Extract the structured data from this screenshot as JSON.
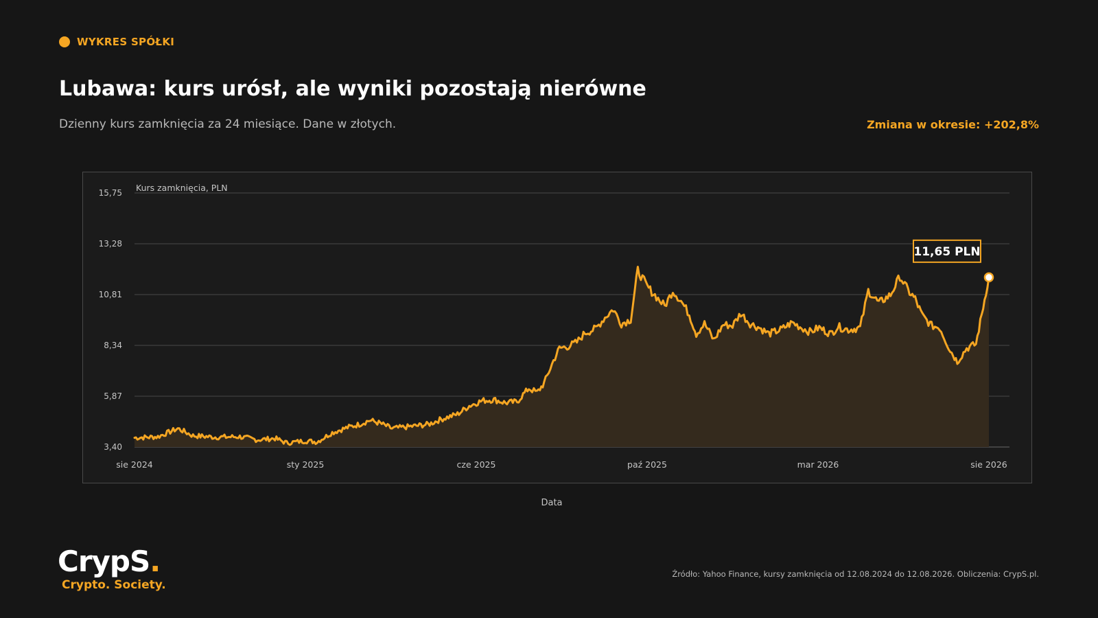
{
  "header": {
    "kicker": "WYKRES SPÓŁKI",
    "title": "Lubawa: kurs urósł, ale wyniki pozostają nierówne",
    "subtitle": "Dzienny kurs zamknięcia za 24 miesiące. Dane w złotych.",
    "change": "Zmiana w okresie: +202,8%"
  },
  "colors": {
    "accent": "#f5a623",
    "background": "#161616",
    "panel": "#1b1b1b",
    "area_fill": "#342a1d"
  },
  "chart_data": {
    "type": "area",
    "ylabel": "Kurs zamknięcia, PLN",
    "xlabel": "Data",
    "ylim": [
      3.4,
      15.75
    ],
    "yticks": [
      "15,75",
      "13,28",
      "10,81",
      "8,34",
      "5,87",
      "3,40"
    ],
    "xticks": [
      "sie 2024",
      "sty 2025",
      "cze 2025",
      "paź 2025",
      "mar 2026",
      "sie 2026"
    ],
    "grid": true,
    "x_start": "2024-08-12",
    "x_end": "2026-08-12",
    "points": [
      [
        "2024-08-12",
        3.85
      ],
      [
        "2024-09-01",
        3.9
      ],
      [
        "2024-09-18",
        4.3
      ],
      [
        "2024-10-01",
        3.95
      ],
      [
        "2024-10-20",
        3.88
      ],
      [
        "2024-11-10",
        3.9
      ],
      [
        "2024-11-25",
        3.75
      ],
      [
        "2024-12-10",
        3.82
      ],
      [
        "2024-12-20",
        3.6
      ],
      [
        "2025-01-05",
        3.7
      ],
      [
        "2025-01-15",
        3.65
      ],
      [
        "2025-01-28",
        4.1
      ],
      [
        "2025-02-10",
        4.35
      ],
      [
        "2025-02-20",
        4.5
      ],
      [
        "2025-03-01",
        4.7
      ],
      [
        "2025-03-10",
        4.55
      ],
      [
        "2025-03-20",
        4.3
      ],
      [
        "2025-04-05",
        4.4
      ],
      [
        "2025-04-20",
        4.5
      ],
      [
        "2025-05-01",
        4.75
      ],
      [
        "2025-05-15",
        5.0
      ],
      [
        "2025-05-25",
        5.4
      ],
      [
        "2025-06-05",
        5.65
      ],
      [
        "2025-06-15",
        5.7
      ],
      [
        "2025-06-25",
        5.55
      ],
      [
        "2025-07-05",
        5.6
      ],
      [
        "2025-07-10",
        5.95
      ],
      [
        "2025-07-15",
        6.25
      ],
      [
        "2025-07-22",
        6.05
      ],
      [
        "2025-07-28",
        6.5
      ],
      [
        "2025-08-05",
        7.6
      ],
      [
        "2025-08-10",
        8.2
      ],
      [
        "2025-08-18",
        8.3
      ],
      [
        "2025-08-25",
        8.5
      ],
      [
        "2025-09-01",
        8.95
      ],
      [
        "2025-09-10",
        9.15
      ],
      [
        "2025-09-18",
        9.7
      ],
      [
        "2025-09-25",
        10.1
      ],
      [
        "2025-10-02",
        9.4
      ],
      [
        "2025-10-10",
        9.6
      ],
      [
        "2025-10-16",
        12.0
      ],
      [
        "2025-10-24",
        11.2
      ],
      [
        "2025-11-01",
        10.7
      ],
      [
        "2025-11-08",
        10.25
      ],
      [
        "2025-11-15",
        11.0
      ],
      [
        "2025-11-22",
        10.5
      ],
      [
        "2025-11-29",
        9.85
      ],
      [
        "2025-12-05",
        8.9
      ],
      [
        "2025-12-12",
        9.4
      ],
      [
        "2025-12-20",
        8.6
      ],
      [
        "2025-12-28",
        9.35
      ],
      [
        "2026-01-05",
        9.3
      ],
      [
        "2026-01-12",
        9.9
      ],
      [
        "2026-01-20",
        9.4
      ],
      [
        "2026-01-28",
        9.2
      ],
      [
        "2026-02-05",
        8.9
      ],
      [
        "2026-02-15",
        9.1
      ],
      [
        "2026-02-25",
        9.45
      ],
      [
        "2026-03-05",
        9.2
      ],
      [
        "2026-03-12",
        9.0
      ],
      [
        "2026-03-20",
        9.2
      ],
      [
        "2026-03-30",
        8.9
      ],
      [
        "2026-04-05",
        9.25
      ],
      [
        "2026-04-14",
        9.1
      ],
      [
        "2026-04-24",
        9.2
      ],
      [
        "2026-05-01",
        11.0
      ],
      [
        "2026-05-10",
        10.4
      ],
      [
        "2026-05-20",
        10.8
      ],
      [
        "2026-05-28",
        11.7
      ],
      [
        "2026-06-04",
        11.0
      ],
      [
        "2026-06-10",
        10.6
      ],
      [
        "2026-06-16",
        9.8
      ],
      [
        "2026-06-24",
        9.3
      ],
      [
        "2026-07-01",
        9.2
      ],
      [
        "2026-07-10",
        8.1
      ],
      [
        "2026-07-16",
        7.55
      ],
      [
        "2026-07-24",
        8.2
      ],
      [
        "2026-08-01",
        8.4
      ],
      [
        "2026-08-12",
        11.65
      ]
    ],
    "current_label": "11,65 PLN"
  },
  "footer": {
    "logo_main": "CrypS",
    "logo_dot": ".",
    "logo_sub": "Crypto. Society.",
    "source": "Źródło: Yahoo Finance, kursy zamknięcia od 12.08.2024 do 12.08.2026. Obliczenia: CrypS.pl."
  }
}
